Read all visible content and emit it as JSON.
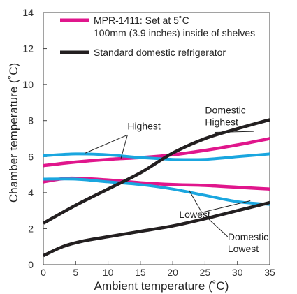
{
  "chart_data": {
    "type": "line",
    "xlabel": "Ambient temperature (˚C)",
    "ylabel": "Chamber temperature (˚C)",
    "xlim": [
      0,
      35
    ],
    "ylim": [
      0,
      14
    ],
    "xticks": [
      0,
      5,
      10,
      15,
      20,
      25,
      30,
      35
    ],
    "yticks": [
      0,
      2,
      4,
      6,
      8,
      10,
      12,
      14
    ],
    "grid": false,
    "legend_position": "top-left",
    "legend": [
      {
        "line1": "MPR-1411: Set at 5˚C",
        "line2": "100mm (3.9 inches) inside of shelves",
        "color": "#e0168c"
      },
      {
        "line1": "Standard domestic refrigerator",
        "line2": "",
        "color": "#231f20"
      }
    ],
    "series": [
      {
        "group": "mpr_pink",
        "color": "#e0168c",
        "x": [
          0,
          5,
          10,
          15,
          20,
          25,
          30,
          35
        ],
        "values": [
          5.5,
          5.7,
          5.85,
          5.95,
          6.1,
          6.35,
          6.65,
          7.0
        ]
      },
      {
        "group": "mpr_pink",
        "color": "#e0168c",
        "x": [
          0,
          4,
          10,
          15,
          20,
          25,
          30,
          35
        ],
        "values": [
          4.6,
          4.8,
          4.7,
          4.55,
          4.45,
          4.4,
          4.3,
          4.2
        ]
      },
      {
        "group": "mpr_blue",
        "color": "#1aa6df",
        "x": [
          0,
          5,
          10,
          15,
          20,
          25,
          30,
          35
        ],
        "values": [
          6.05,
          6.15,
          6.1,
          5.95,
          5.85,
          5.85,
          6.0,
          6.15
        ]
      },
      {
        "group": "mpr_blue",
        "color": "#1aa6df",
        "x": [
          0,
          5,
          10,
          15,
          20,
          25,
          30,
          35
        ],
        "values": [
          4.75,
          4.75,
          4.6,
          4.45,
          4.2,
          3.85,
          3.5,
          3.35
        ]
      },
      {
        "group": "domestic",
        "color": "#231f20",
        "x": [
          0,
          5,
          10,
          15,
          20,
          25,
          30,
          35
        ],
        "values": [
          2.3,
          3.3,
          4.2,
          5.1,
          6.2,
          7.0,
          7.55,
          8.05
        ]
      },
      {
        "group": "domestic",
        "color": "#231f20",
        "x": [
          0,
          3,
          6,
          10,
          15,
          20,
          25,
          30,
          35
        ],
        "values": [
          0.5,
          1.0,
          1.3,
          1.55,
          1.85,
          2.15,
          2.55,
          3.0,
          3.45
        ]
      }
    ],
    "annotations": [
      {
        "lines": [
          "Highest"
        ],
        "anchor": "start",
        "text_at": [
          13.0,
          7.5
        ],
        "from": [
          13.0,
          7.2
        ],
        "to": [
          [
            6.5,
            6.2
          ],
          [
            12.0,
            5.9
          ]
        ]
      },
      {
        "lines": [
          "Lowest"
        ],
        "anchor": "start",
        "text_at": [
          21.0,
          2.6
        ],
        "from": [
          24.5,
          2.9
        ],
        "to": [
          [
            22.5,
            4.15
          ],
          [
            32.0,
            3.55
          ]
        ]
      },
      {
        "lines": [
          "Domestic",
          "Highest"
        ],
        "anchor": "start",
        "text_at": [
          25.0,
          8.4
        ],
        "from": [
          26.5,
          7.35
        ],
        "to": [
          [
            32.5,
            7.4
          ]
        ]
      },
      {
        "lines": [
          "Domestic",
          "Lowest"
        ],
        "anchor": "start",
        "text_at": [
          28.5,
          1.35
        ],
        "from": [
          28.5,
          1.55
        ],
        "to": [
          [
            25.5,
            2.55
          ]
        ]
      }
    ]
  }
}
